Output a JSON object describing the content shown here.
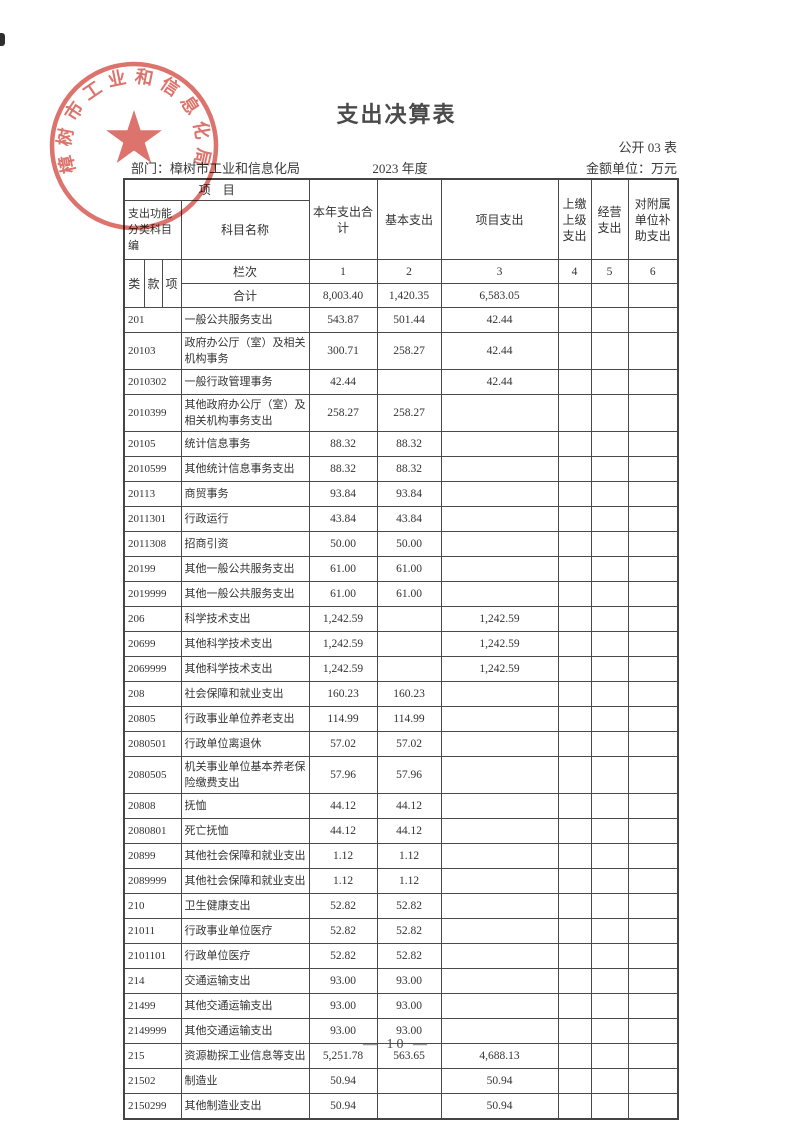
{
  "page": {
    "title": "支出决算表",
    "table_code": "公开 03 表",
    "department_label": "部门：",
    "department": "樟树市工业和信息化局",
    "year": "2023 年度",
    "unit": "金额单位：万元",
    "page_number": "— 10 —"
  },
  "colors": {
    "stamp_red": "#d5544b",
    "table_border": "#4a4a4a",
    "text": "#333333"
  },
  "stamp": {
    "text": "樟树市工业和信息化局",
    "icon": "star-icon"
  },
  "table": {
    "header": {
      "project": "项　目",
      "func_code": "支出功能分类科目编",
      "subject_name": "科目名称",
      "cols": [
        "本年支出合计",
        "基本支出",
        "项目支出",
        "上缴上级支出",
        "经营支出",
        "对附属单位补助支出"
      ],
      "code_sub": [
        "类",
        "款",
        "项"
      ],
      "lanci": "栏次",
      "col_numbers": [
        "1",
        "2",
        "3",
        "4",
        "5",
        "6"
      ]
    },
    "total_row": {
      "label": "合计",
      "values": [
        "8,003.40",
        "1,420.35",
        "6,583.05",
        "",
        "",
        ""
      ]
    },
    "rows": [
      {
        "code": "201",
        "name": "一般公共服务支出",
        "total": "543.87",
        "basic": "501.44",
        "project": "42.44"
      },
      {
        "code": "20103",
        "name": "政府办公厅（室）及相关机构事务",
        "total": "300.71",
        "basic": "258.27",
        "project": "42.44"
      },
      {
        "code": "2010302",
        "name": "一般行政管理事务",
        "total": "42.44",
        "basic": "",
        "project": "42.44"
      },
      {
        "code": "2010399",
        "name": "其他政府办公厅（室）及相关机构事务支出",
        "total": "258.27",
        "basic": "258.27",
        "project": ""
      },
      {
        "code": "20105",
        "name": "统计信息事务",
        "total": "88.32",
        "basic": "88.32",
        "project": ""
      },
      {
        "code": "2010599",
        "name": "其他统计信息事务支出",
        "total": "88.32",
        "basic": "88.32",
        "project": ""
      },
      {
        "code": "20113",
        "name": "商贸事务",
        "total": "93.84",
        "basic": "93.84",
        "project": ""
      },
      {
        "code": "2011301",
        "name": "行政运行",
        "total": "43.84",
        "basic": "43.84",
        "project": ""
      },
      {
        "code": "2011308",
        "name": "招商引资",
        "total": "50.00",
        "basic": "50.00",
        "project": ""
      },
      {
        "code": "20199",
        "name": "其他一般公共服务支出",
        "total": "61.00",
        "basic": "61.00",
        "project": ""
      },
      {
        "code": "2019999",
        "name": "其他一般公共服务支出",
        "total": "61.00",
        "basic": "61.00",
        "project": ""
      },
      {
        "code": "206",
        "name": "科学技术支出",
        "total": "1,242.59",
        "basic": "",
        "project": "1,242.59"
      },
      {
        "code": "20699",
        "name": "其他科学技术支出",
        "total": "1,242.59",
        "basic": "",
        "project": "1,242.59"
      },
      {
        "code": "2069999",
        "name": "其他科学技术支出",
        "total": "1,242.59",
        "basic": "",
        "project": "1,242.59"
      },
      {
        "code": "208",
        "name": "社会保障和就业支出",
        "total": "160.23",
        "basic": "160.23",
        "project": ""
      },
      {
        "code": "20805",
        "name": "行政事业单位养老支出",
        "total": "114.99",
        "basic": "114.99",
        "project": ""
      },
      {
        "code": "2080501",
        "name": "行政单位离退休",
        "total": "57.02",
        "basic": "57.02",
        "project": ""
      },
      {
        "code": "2080505",
        "name": "机关事业单位基本养老保险缴费支出",
        "total": "57.96",
        "basic": "57.96",
        "project": ""
      },
      {
        "code": "20808",
        "name": "抚恤",
        "total": "44.12",
        "basic": "44.12",
        "project": ""
      },
      {
        "code": "2080801",
        "name": "死亡抚恤",
        "total": "44.12",
        "basic": "44.12",
        "project": ""
      },
      {
        "code": "20899",
        "name": "其他社会保障和就业支出",
        "total": "1.12",
        "basic": "1.12",
        "project": ""
      },
      {
        "code": "2089999",
        "name": "其他社会保障和就业支出",
        "total": "1.12",
        "basic": "1.12",
        "project": ""
      },
      {
        "code": "210",
        "name": "卫生健康支出",
        "total": "52.82",
        "basic": "52.82",
        "project": ""
      },
      {
        "code": "21011",
        "name": "行政事业单位医疗",
        "total": "52.82",
        "basic": "52.82",
        "project": ""
      },
      {
        "code": "2101101",
        "name": "行政单位医疗",
        "total": "52.82",
        "basic": "52.82",
        "project": ""
      },
      {
        "code": "214",
        "name": "交通运输支出",
        "total": "93.00",
        "basic": "93.00",
        "project": ""
      },
      {
        "code": "21499",
        "name": "其他交通运输支出",
        "total": "93.00",
        "basic": "93.00",
        "project": ""
      },
      {
        "code": "2149999",
        "name": "其他交通运输支出",
        "total": "93.00",
        "basic": "93.00",
        "project": ""
      },
      {
        "code": "215",
        "name": "资源勘探工业信息等支出",
        "total": "5,251.78",
        "basic": "563.65",
        "project": "4,688.13"
      },
      {
        "code": "21502",
        "name": "制造业",
        "total": "50.94",
        "basic": "",
        "project": "50.94"
      },
      {
        "code": "2150299",
        "name": "其他制造业支出",
        "total": "50.94",
        "basic": "",
        "project": "50.94"
      }
    ]
  }
}
